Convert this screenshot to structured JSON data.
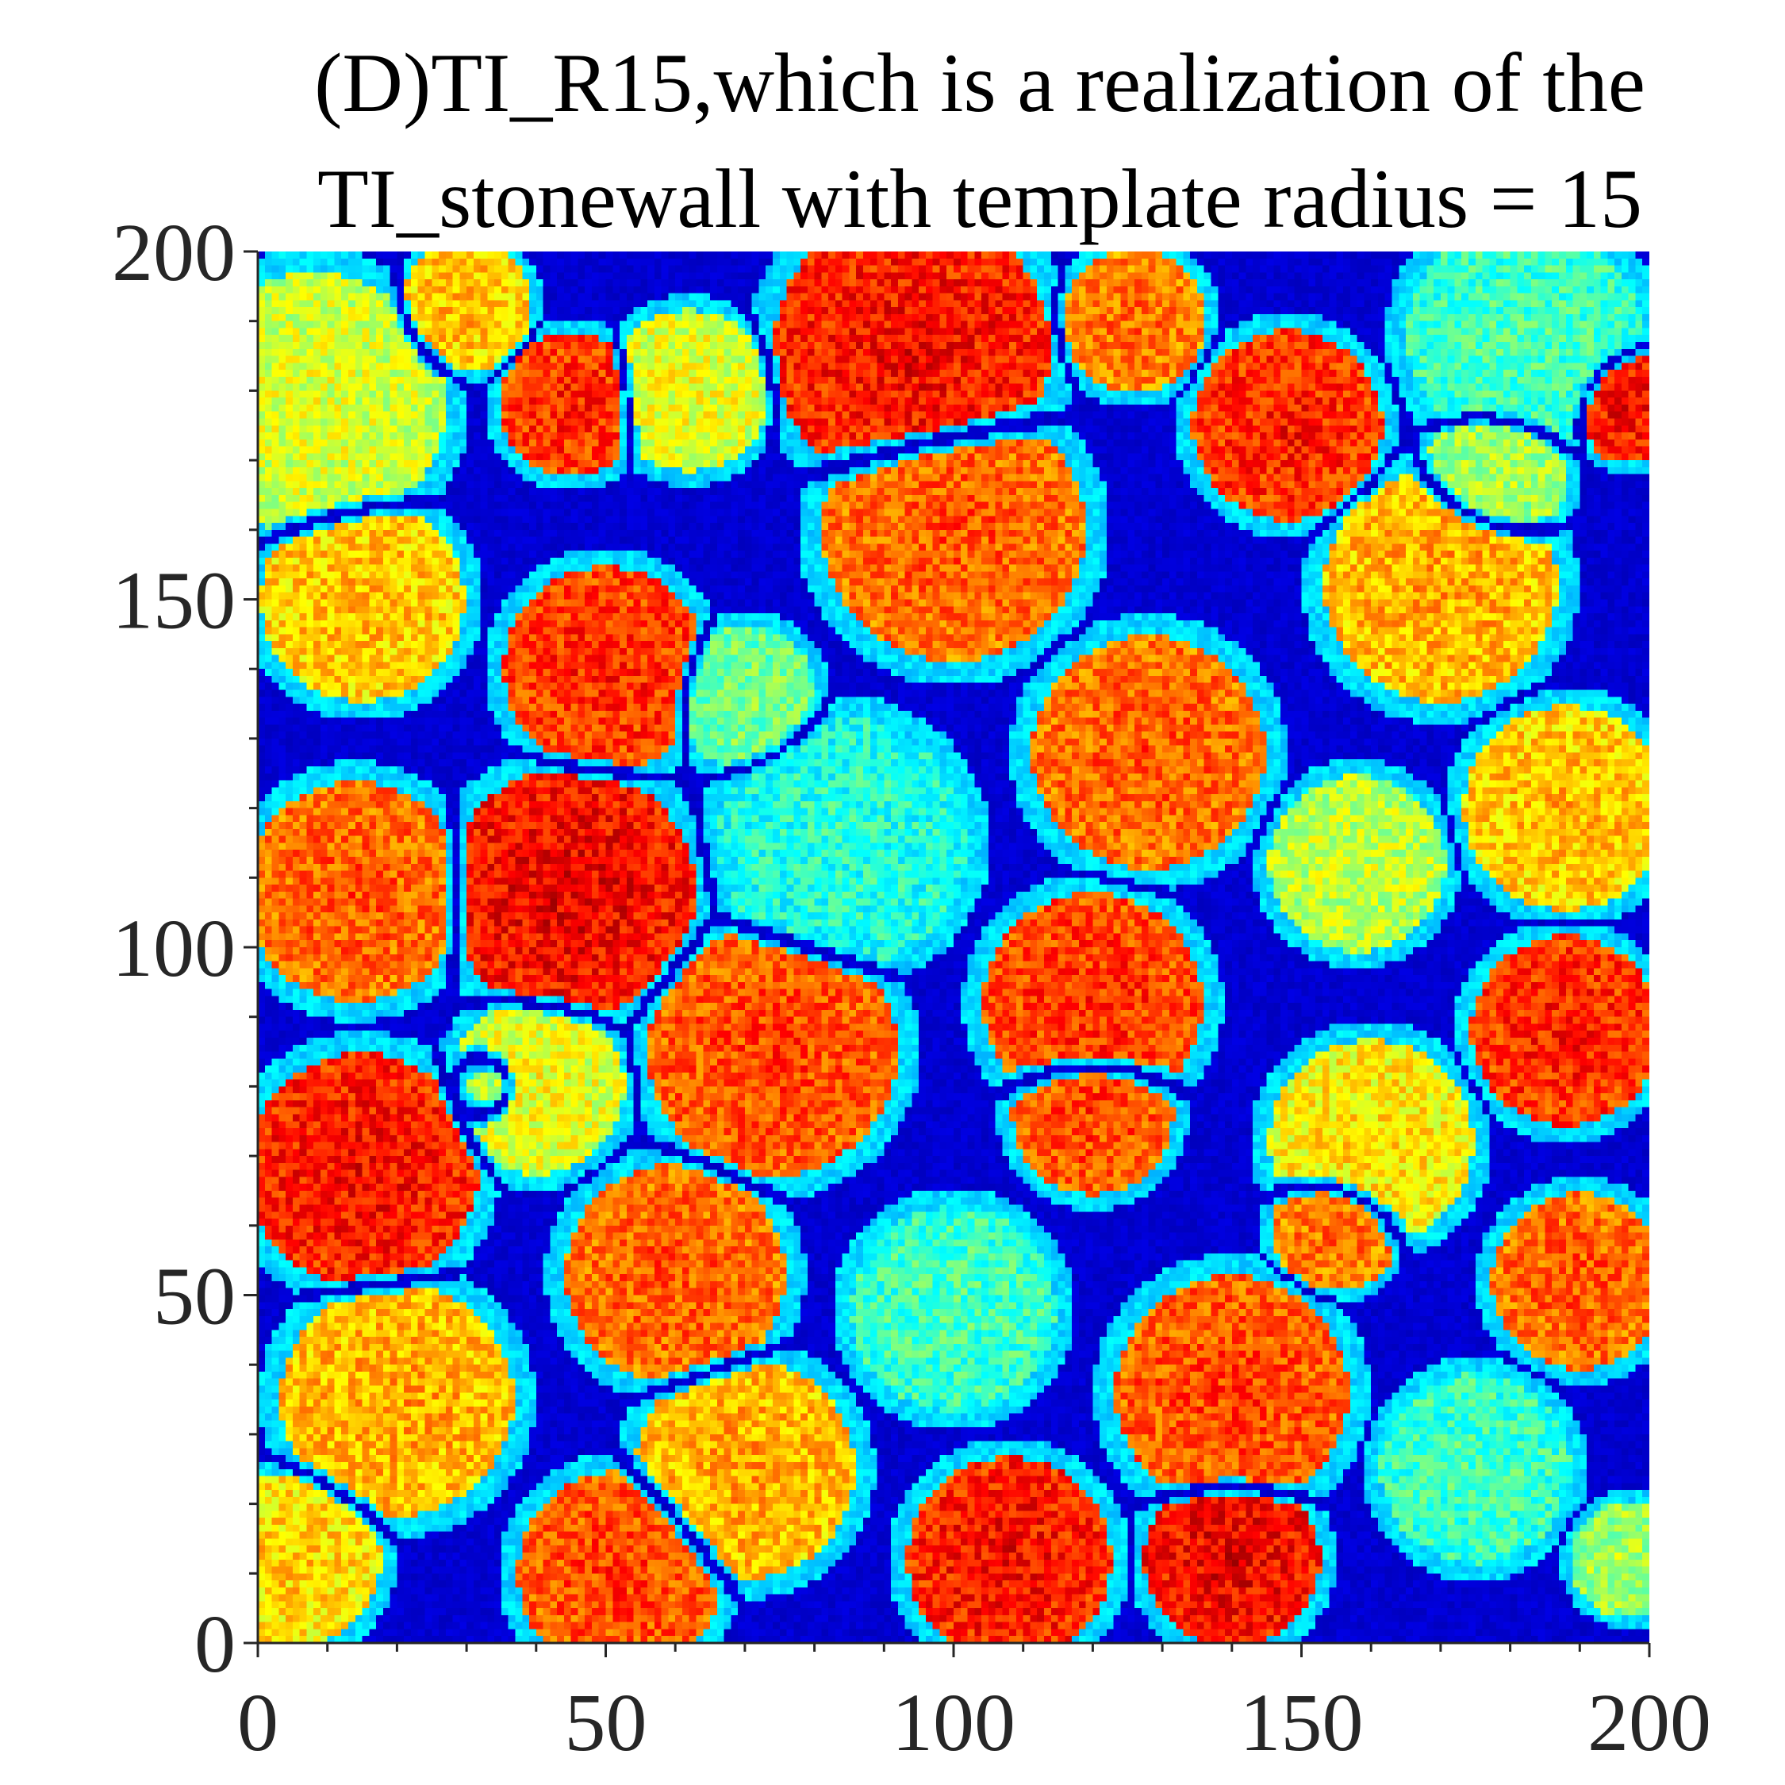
{
  "chart_data": {
    "type": "heatmap",
    "title": "(D)TI_R15,which is a realization of the TI_stonewall with template radius = 15",
    "title_lines": [
      "(D)TI_R15,which is a realization of the",
      "TI_stonewall with template radius = 15"
    ],
    "xlabel": "",
    "ylabel": "",
    "xlim": [
      0,
      200
    ],
    "ylim": [
      0,
      200
    ],
    "x_ticks": [
      0,
      50,
      100,
      150,
      200
    ],
    "y_ticks": [
      0,
      50,
      100,
      150,
      200
    ],
    "x_tick_labels": [
      "0",
      "50",
      "100",
      "150",
      "200"
    ],
    "y_tick_labels": [
      "0",
      "50",
      "100",
      "150",
      "200"
    ],
    "minor_tick_step": 10,
    "grid_size": [
      200,
      200
    ],
    "colormap": "jet",
    "colormap_stops": [
      "#00008f",
      "#0000ff",
      "#00ffff",
      "#ffff00",
      "#ff0000",
      "#800000"
    ],
    "grid": false,
    "colorbar": false,
    "stones": [
      {
        "cx": 8,
        "cy": 178,
        "r": 18,
        "v": 0.6
      },
      {
        "cx": 30,
        "cy": 192,
        "r": 9,
        "v": 0.7
      },
      {
        "cx": 45,
        "cy": 178,
        "r": 10,
        "v": 0.85
      },
      {
        "cx": 62,
        "cy": 180,
        "r": 11,
        "v": 0.62
      },
      {
        "cx": 94,
        "cy": 186,
        "r": 19,
        "v": 0.88
      },
      {
        "cx": 126,
        "cy": 190,
        "r": 10,
        "v": 0.78
      },
      {
        "cx": 148,
        "cy": 175,
        "r": 13,
        "v": 0.86
      },
      {
        "cx": 182,
        "cy": 188,
        "r": 16,
        "v": 0.45
      },
      {
        "cx": 15,
        "cy": 150,
        "r": 14,
        "v": 0.7
      },
      {
        "cx": 70,
        "cy": 136,
        "r": 10,
        "v": 0.5
      },
      {
        "cx": 50,
        "cy": 140,
        "r": 14,
        "v": 0.85
      },
      {
        "cx": 100,
        "cy": 160,
        "r": 18,
        "v": 0.8
      },
      {
        "cx": 170,
        "cy": 152,
        "r": 16,
        "v": 0.72
      },
      {
        "cx": 84,
        "cy": 115,
        "r": 17,
        "v": 0.42
      },
      {
        "cx": 128,
        "cy": 128,
        "r": 16,
        "v": 0.8
      },
      {
        "cx": 14,
        "cy": 108,
        "r": 15,
        "v": 0.8
      },
      {
        "cx": 45,
        "cy": 108,
        "r": 17,
        "v": 0.9
      },
      {
        "cx": 74,
        "cy": 85,
        "r": 17,
        "v": 0.82
      },
      {
        "cx": 120,
        "cy": 92,
        "r": 15,
        "v": 0.84
      },
      {
        "cx": 158,
        "cy": 112,
        "r": 12,
        "v": 0.58
      },
      {
        "cx": 188,
        "cy": 120,
        "r": 14,
        "v": 0.7
      },
      {
        "cx": 40,
        "cy": 80,
        "r": 12,
        "v": 0.62
      },
      {
        "cx": 15,
        "cy": 68,
        "r": 16,
        "v": 0.88
      },
      {
        "cx": 120,
        "cy": 76,
        "r": 11,
        "v": 0.82
      },
      {
        "cx": 160,
        "cy": 72,
        "r": 14,
        "v": 0.66
      },
      {
        "cx": 188,
        "cy": 88,
        "r": 13,
        "v": 0.86
      },
      {
        "cx": 60,
        "cy": 53,
        "r": 15,
        "v": 0.8
      },
      {
        "cx": 100,
        "cy": 48,
        "r": 14,
        "v": 0.45
      },
      {
        "cx": 20,
        "cy": 35,
        "r": 16,
        "v": 0.72
      },
      {
        "cx": 140,
        "cy": 36,
        "r": 16,
        "v": 0.82
      },
      {
        "cx": 190,
        "cy": 52,
        "r": 12,
        "v": 0.8
      },
      {
        "cx": 175,
        "cy": 25,
        "r": 13,
        "v": 0.45
      },
      {
        "cx": 70,
        "cy": 25,
        "r": 15,
        "v": 0.72
      },
      {
        "cx": 52,
        "cy": 10,
        "r": 14,
        "v": 0.82
      },
      {
        "cx": 108,
        "cy": 12,
        "r": 14,
        "v": 0.88
      },
      {
        "cx": 140,
        "cy": 12,
        "r": 12,
        "v": 0.9
      },
      {
        "cx": 5,
        "cy": 12,
        "r": 12,
        "v": 0.68
      },
      {
        "cx": 178,
        "cy": 168,
        "r": 10,
        "v": 0.55
      },
      {
        "cx": 34,
        "cy": 80,
        "r": 6,
        "v": 0.55
      },
      {
        "cx": 155,
        "cy": 60,
        "r": 9,
        "v": 0.78
      },
      {
        "cx": 197,
        "cy": 178,
        "r": 8,
        "v": 0.88
      },
      {
        "cx": 197,
        "cy": 12,
        "r": 8,
        "v": 0.55
      }
    ]
  }
}
